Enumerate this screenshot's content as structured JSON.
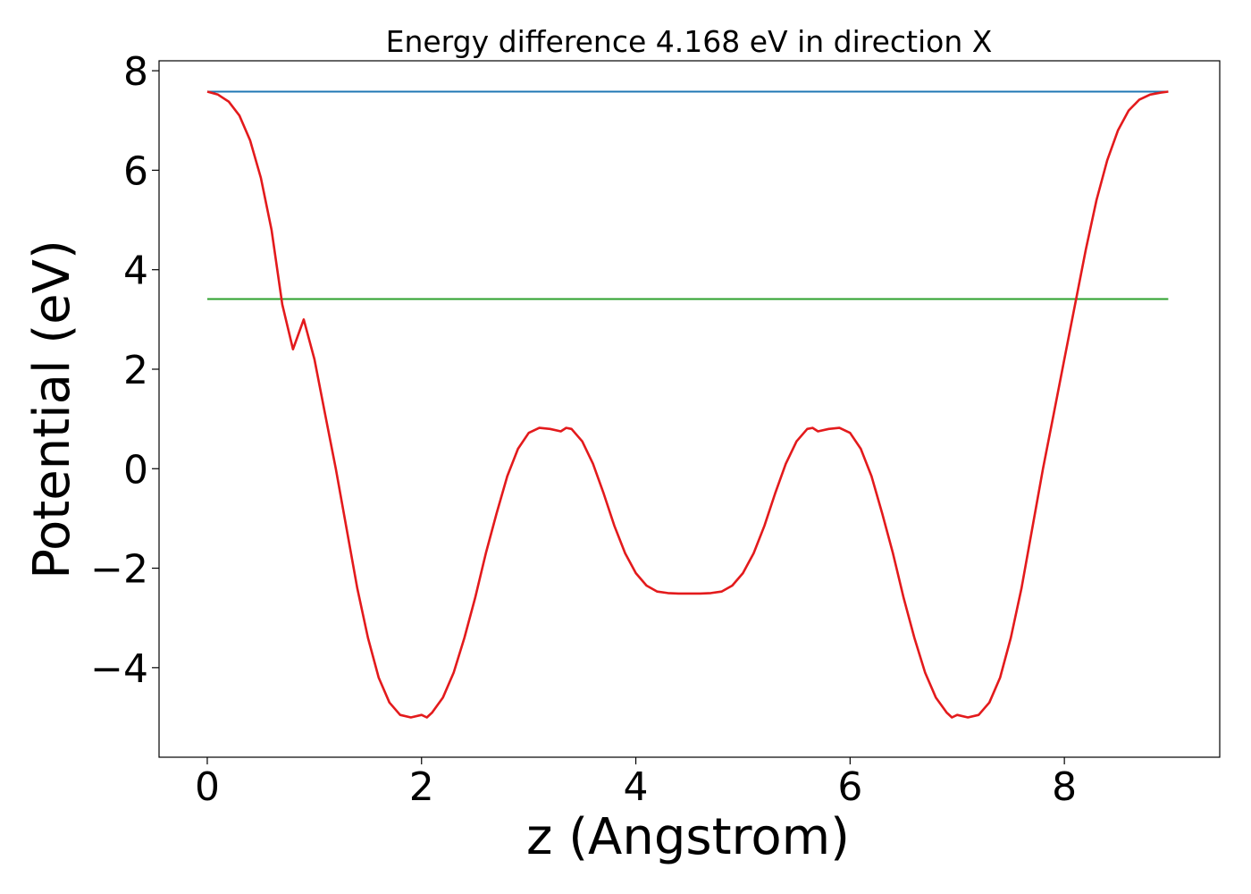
{
  "chart_data": {
    "type": "line",
    "title": "Energy difference 4.168 eV in direction X",
    "xlabel": "z (Angstrom)",
    "ylabel": "Potential (eV)",
    "xlim": [
      -0.45,
      9.45
    ],
    "ylim": [
      -5.8,
      8.2
    ],
    "xticks": [
      0,
      2,
      4,
      6,
      8
    ],
    "xtick_labels": [
      "0",
      "2",
      "4",
      "6",
      "8"
    ],
    "yticks": [
      -4,
      -2,
      0,
      2,
      4,
      6,
      8
    ],
    "ytick_labels": [
      "−4",
      "−2",
      "0",
      "2",
      "4",
      "6",
      "8"
    ],
    "grid": false,
    "series": [
      {
        "color": "#1f77b4",
        "x": [
          0,
          8.97
        ],
        "y": [
          7.58,
          7.58
        ]
      },
      {
        "color": "#2ca02c",
        "x": [
          0,
          8.97
        ],
        "y": [
          3.41,
          3.41
        ]
      },
      {
        "color": "#e31a1c",
        "x": [
          0,
          0.1,
          0.2,
          0.3,
          0.4,
          0.5,
          0.6,
          0.7,
          0.8,
          0.9,
          1.0,
          1.1,
          1.2,
          1.3,
          1.4,
          1.5,
          1.6,
          1.7,
          1.8,
          1.9,
          2.0,
          2.05,
          2.1,
          2.2,
          2.3,
          2.4,
          2.5,
          2.6,
          2.7,
          2.8,
          2.9,
          3.0,
          3.1,
          3.2,
          3.3,
          3.35,
          3.4,
          3.5,
          3.6,
          3.7,
          3.8,
          3.9,
          4.0,
          4.1,
          4.2,
          4.3,
          4.4,
          4.5,
          4.6,
          4.7,
          4.8,
          4.9,
          5.0,
          5.1,
          5.2,
          5.3,
          5.4,
          5.5,
          5.6,
          5.65,
          5.7,
          5.8,
          5.9,
          6.0,
          6.1,
          6.2,
          6.3,
          6.4,
          6.5,
          6.6,
          6.7,
          6.8,
          6.9,
          6.95,
          7.0,
          7.1,
          7.2,
          7.3,
          7.4,
          7.5,
          7.6,
          7.7,
          7.8,
          7.9,
          8.0,
          8.1,
          8.2,
          8.3,
          8.4,
          8.5,
          8.6,
          8.7,
          8.8,
          8.9,
          8.97
        ],
        "y": [
          7.58,
          7.52,
          7.38,
          7.1,
          6.6,
          5.85,
          4.8,
          3.3,
          2.4,
          3.0,
          2.2,
          1.1,
          0.0,
          -1.2,
          -2.4,
          -3.4,
          -4.2,
          -4.7,
          -4.95,
          -5.0,
          -4.95,
          -5.0,
          -4.9,
          -4.6,
          -4.1,
          -3.4,
          -2.6,
          -1.7,
          -0.9,
          -0.15,
          0.4,
          0.72,
          0.82,
          0.8,
          0.75,
          0.82,
          0.8,
          0.55,
          0.1,
          -0.5,
          -1.15,
          -1.7,
          -2.1,
          -2.35,
          -2.47,
          -2.5,
          -2.51,
          -2.51,
          -2.51,
          -2.5,
          -2.47,
          -2.35,
          -2.1,
          -1.7,
          -1.15,
          -0.5,
          0.1,
          0.55,
          0.8,
          0.82,
          0.75,
          0.8,
          0.82,
          0.72,
          0.4,
          -0.15,
          -0.9,
          -1.7,
          -2.6,
          -3.4,
          -4.1,
          -4.6,
          -4.9,
          -5.0,
          -4.95,
          -5.0,
          -4.95,
          -4.7,
          -4.2,
          -3.4,
          -2.4,
          -1.2,
          0.0,
          1.1,
          2.2,
          3.3,
          4.4,
          5.4,
          6.2,
          6.8,
          7.2,
          7.42,
          7.52,
          7.56,
          7.58
        ]
      }
    ]
  }
}
